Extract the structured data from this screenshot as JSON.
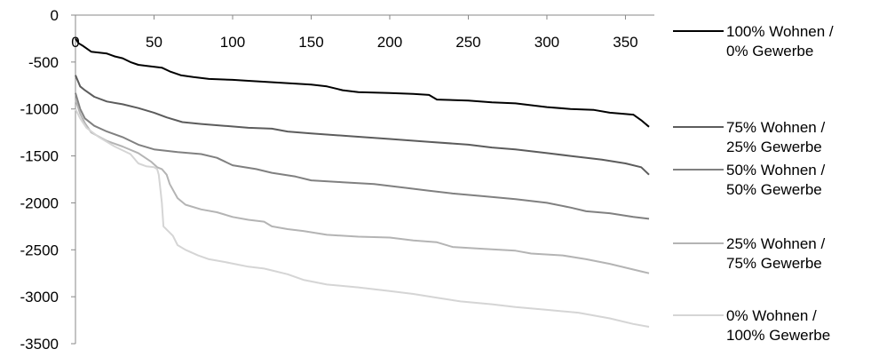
{
  "chart_data": {
    "type": "line",
    "title": "",
    "xlabel": "",
    "ylabel": "",
    "xlim": [
      0,
      365
    ],
    "ylim": [
      -3500,
      0
    ],
    "x_ticks": [
      0,
      50,
      100,
      150,
      200,
      250,
      300,
      350
    ],
    "y_ticks": [
      0,
      -500,
      -1000,
      -1500,
      -2000,
      -2500,
      -3000,
      -3500
    ],
    "grid": false,
    "legend_position": "right",
    "series": [
      {
        "name_lines": [
          "100% Wohnen /",
          "0% Gewerbe"
        ],
        "color": "#000000",
        "points": [
          [
            0,
            -250
          ],
          [
            2,
            -300
          ],
          [
            5,
            -330
          ],
          [
            10,
            -390
          ],
          [
            20,
            -410
          ],
          [
            25,
            -440
          ],
          [
            30,
            -460
          ],
          [
            35,
            -500
          ],
          [
            40,
            -530
          ],
          [
            45,
            -540
          ],
          [
            55,
            -560
          ],
          [
            60,
            -600
          ],
          [
            67,
            -640
          ],
          [
            75,
            -660
          ],
          [
            85,
            -680
          ],
          [
            100,
            -690
          ],
          [
            110,
            -700
          ],
          [
            130,
            -720
          ],
          [
            150,
            -740
          ],
          [
            160,
            -760
          ],
          [
            170,
            -800
          ],
          [
            180,
            -820
          ],
          [
            200,
            -830
          ],
          [
            215,
            -840
          ],
          [
            225,
            -850
          ],
          [
            230,
            -900
          ],
          [
            250,
            -910
          ],
          [
            265,
            -930
          ],
          [
            280,
            -940
          ],
          [
            290,
            -960
          ],
          [
            300,
            -980
          ],
          [
            315,
            -1000
          ],
          [
            330,
            -1010
          ],
          [
            340,
            -1040
          ],
          [
            355,
            -1060
          ],
          [
            360,
            -1120
          ],
          [
            365,
            -1190
          ]
        ]
      },
      {
        "name_lines": [
          "75% Wohnen /",
          "25% Gewerbe"
        ],
        "color": "#5c5c5c",
        "points": [
          [
            0,
            -640
          ],
          [
            3,
            -760
          ],
          [
            6,
            -800
          ],
          [
            12,
            -870
          ],
          [
            20,
            -920
          ],
          [
            30,
            -950
          ],
          [
            40,
            -990
          ],
          [
            50,
            -1040
          ],
          [
            58,
            -1090
          ],
          [
            68,
            -1140
          ],
          [
            80,
            -1160
          ],
          [
            95,
            -1180
          ],
          [
            110,
            -1200
          ],
          [
            125,
            -1210
          ],
          [
            135,
            -1240
          ],
          [
            150,
            -1260
          ],
          [
            175,
            -1290
          ],
          [
            200,
            -1320
          ],
          [
            225,
            -1350
          ],
          [
            250,
            -1380
          ],
          [
            265,
            -1410
          ],
          [
            280,
            -1430
          ],
          [
            300,
            -1470
          ],
          [
            315,
            -1500
          ],
          [
            335,
            -1540
          ],
          [
            350,
            -1580
          ],
          [
            360,
            -1620
          ],
          [
            365,
            -1700
          ]
        ]
      },
      {
        "name_lines": [
          "50% Wohnen /",
          "50% Gewerbe"
        ],
        "color": "#808080",
        "points": [
          [
            0,
            -830
          ],
          [
            3,
            -1000
          ],
          [
            6,
            -1100
          ],
          [
            12,
            -1180
          ],
          [
            20,
            -1240
          ],
          [
            30,
            -1300
          ],
          [
            40,
            -1380
          ],
          [
            50,
            -1430
          ],
          [
            65,
            -1460
          ],
          [
            80,
            -1480
          ],
          [
            90,
            -1520
          ],
          [
            100,
            -1600
          ],
          [
            115,
            -1640
          ],
          [
            125,
            -1680
          ],
          [
            140,
            -1720
          ],
          [
            150,
            -1760
          ],
          [
            170,
            -1780
          ],
          [
            190,
            -1800
          ],
          [
            210,
            -1840
          ],
          [
            225,
            -1870
          ],
          [
            240,
            -1900
          ],
          [
            260,
            -1930
          ],
          [
            280,
            -1960
          ],
          [
            300,
            -2000
          ],
          [
            315,
            -2050
          ],
          [
            325,
            -2090
          ],
          [
            340,
            -2110
          ],
          [
            355,
            -2150
          ],
          [
            365,
            -2170
          ]
        ]
      },
      {
        "name_lines": [
          "25% Wohnen /",
          "75% Gewerbe"
        ],
        "color": "#b4b4b4",
        "points": [
          [
            0,
            -900
          ],
          [
            3,
            -1050
          ],
          [
            6,
            -1150
          ],
          [
            10,
            -1250
          ],
          [
            20,
            -1340
          ],
          [
            30,
            -1400
          ],
          [
            40,
            -1470
          ],
          [
            48,
            -1560
          ],
          [
            52,
            -1620
          ],
          [
            55,
            -1640
          ],
          [
            58,
            -1700
          ],
          [
            60,
            -1800
          ],
          [
            65,
            -1950
          ],
          [
            70,
            -2020
          ],
          [
            80,
            -2070
          ],
          [
            90,
            -2100
          ],
          [
            100,
            -2150
          ],
          [
            110,
            -2180
          ],
          [
            120,
            -2200
          ],
          [
            125,
            -2250
          ],
          [
            135,
            -2280
          ],
          [
            145,
            -2300
          ],
          [
            160,
            -2340
          ],
          [
            180,
            -2360
          ],
          [
            200,
            -2370
          ],
          [
            215,
            -2400
          ],
          [
            230,
            -2420
          ],
          [
            240,
            -2470
          ],
          [
            260,
            -2490
          ],
          [
            280,
            -2510
          ],
          [
            290,
            -2540
          ],
          [
            310,
            -2560
          ],
          [
            325,
            -2600
          ],
          [
            340,
            -2650
          ],
          [
            350,
            -2690
          ],
          [
            360,
            -2730
          ],
          [
            365,
            -2750
          ]
        ]
      },
      {
        "name_lines": [
          "0% Wohnen /",
          "100% Gewerbe"
        ],
        "color": "#d5d5d5",
        "points": [
          [
            0,
            -1000
          ],
          [
            3,
            -1100
          ],
          [
            7,
            -1200
          ],
          [
            15,
            -1300
          ],
          [
            25,
            -1400
          ],
          [
            35,
            -1480
          ],
          [
            40,
            -1580
          ],
          [
            45,
            -1610
          ],
          [
            50,
            -1620
          ],
          [
            52,
            -1640
          ],
          [
            53,
            -1700
          ],
          [
            54,
            -1850
          ],
          [
            55,
            -2000
          ],
          [
            56,
            -2250
          ],
          [
            62,
            -2350
          ],
          [
            65,
            -2450
          ],
          [
            70,
            -2500
          ],
          [
            78,
            -2560
          ],
          [
            85,
            -2600
          ],
          [
            95,
            -2630
          ],
          [
            110,
            -2680
          ],
          [
            120,
            -2700
          ],
          [
            125,
            -2720
          ],
          [
            135,
            -2760
          ],
          [
            145,
            -2820
          ],
          [
            160,
            -2870
          ],
          [
            180,
            -2900
          ],
          [
            200,
            -2940
          ],
          [
            215,
            -2970
          ],
          [
            230,
            -3010
          ],
          [
            245,
            -3050
          ],
          [
            265,
            -3080
          ],
          [
            280,
            -3110
          ],
          [
            300,
            -3140
          ],
          [
            320,
            -3170
          ],
          [
            340,
            -3230
          ],
          [
            355,
            -3290
          ],
          [
            365,
            -3320
          ]
        ]
      }
    ]
  }
}
